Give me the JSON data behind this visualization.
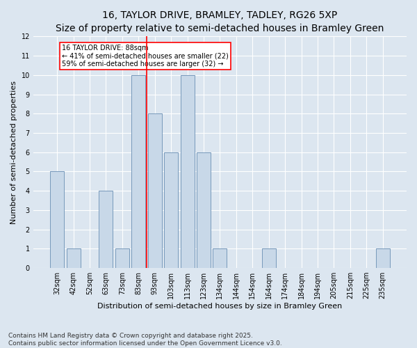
{
  "title1": "16, TAYLOR DRIVE, BRAMLEY, TADLEY, RG26 5XP",
  "title2": "Size of property relative to semi-detached houses in Bramley Green",
  "categories": [
    "32sqm",
    "42sqm",
    "52sqm",
    "63sqm",
    "73sqm",
    "83sqm",
    "93sqm",
    "103sqm",
    "113sqm",
    "123sqm",
    "134sqm",
    "144sqm",
    "154sqm",
    "164sqm",
    "174sqm",
    "184sqm",
    "194sqm",
    "205sqm",
    "215sqm",
    "225sqm",
    "235sqm"
  ],
  "values": [
    5,
    1,
    0,
    4,
    1,
    10,
    8,
    6,
    10,
    6,
    1,
    0,
    0,
    1,
    0,
    0,
    0,
    0,
    0,
    0,
    1
  ],
  "bar_color": "#c8d8e8",
  "bar_edgecolor": "#7799bb",
  "red_line_x": 5.5,
  "annotation_text": "16 TAYLOR DRIVE: 88sqm\n← 41% of semi-detached houses are smaller (22)\n59% of semi-detached houses are larger (32) →",
  "xlabel": "Distribution of semi-detached houses by size in Bramley Green",
  "ylabel": "Number of semi-detached properties",
  "ylim": [
    0,
    12
  ],
  "yticks": [
    0,
    1,
    2,
    3,
    4,
    5,
    6,
    7,
    8,
    9,
    10,
    11,
    12
  ],
  "footnote": "Contains HM Land Registry data © Crown copyright and database right 2025.\nContains public sector information licensed under the Open Government Licence v3.0.",
  "title1_fontsize": 10,
  "title2_fontsize": 8,
  "xlabel_fontsize": 8,
  "ylabel_fontsize": 8,
  "tick_fontsize": 7,
  "annot_fontsize": 7,
  "footnote_fontsize": 6.5,
  "background_color": "#dce6f0",
  "plot_background": "#dce6f0",
  "grid_color": "#ffffff"
}
